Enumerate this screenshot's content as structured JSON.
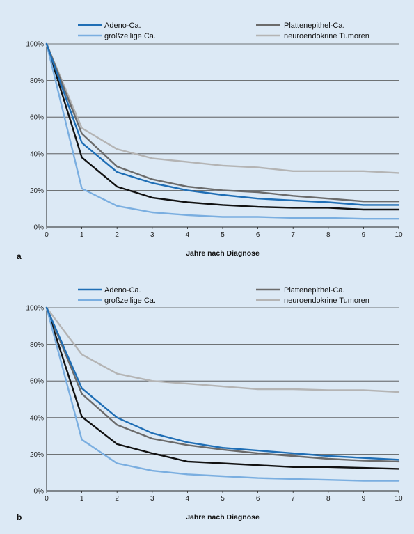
{
  "chart_data": [
    {
      "panel": "a",
      "type": "line",
      "xlabel": "Jahre nach Diagnose",
      "ylabel": "",
      "x": [
        0,
        1,
        2,
        3,
        4,
        5,
        6,
        7,
        8,
        9,
        10
      ],
      "xlim": [
        0,
        10
      ],
      "ylim": [
        0,
        100
      ],
      "ytick_labels": [
        "0%",
        "20%",
        "40%",
        "60%",
        "80%",
        "100%"
      ],
      "xtick_labels": [
        "0",
        "1",
        "2",
        "3",
        "4",
        "5",
        "6",
        "7",
        "8",
        "9",
        "10"
      ],
      "grid": true,
      "legend_position": "top",
      "series": [
        {
          "name": "Adeno-Ca.",
          "color": "#1f6eb5",
          "values": [
            100,
            46,
            30,
            24,
            20,
            17.5,
            15.5,
            14.5,
            13.5,
            12,
            12
          ]
        },
        {
          "name": "großzellige Ca.",
          "color": "#7aaee0",
          "values": [
            100,
            21,
            11.5,
            8,
            6.5,
            5.5,
            5.5,
            5,
            5,
            4.5,
            4.5
          ]
        },
        {
          "name": "Plattenepithel-Ca.",
          "color": "#6b6b6b",
          "values": [
            100,
            51,
            33,
            26,
            22,
            20,
            19,
            17,
            15.5,
            14,
            14
          ]
        },
        {
          "name": "neuroendokrine Tumoren",
          "color": "#b4b4b4",
          "values": [
            100,
            54,
            42.5,
            37.5,
            35.5,
            33.5,
            32.5,
            30.5,
            30.5,
            30.5,
            29.5
          ]
        },
        {
          "name": "",
          "color": "#111111",
          "values": [
            100,
            38,
            22,
            16,
            13.5,
            12,
            11,
            10.5,
            10.5,
            9.5,
            9.5
          ]
        }
      ]
    },
    {
      "panel": "b",
      "type": "line",
      "xlabel": "Jahre nach Diagnose",
      "ylabel": "",
      "x": [
        0,
        1,
        2,
        3,
        4,
        5,
        6,
        7,
        8,
        9,
        10
      ],
      "xlim": [
        0,
        10
      ],
      "ylim": [
        0,
        100
      ],
      "ytick_labels": [
        "0%",
        "20%",
        "40%",
        "60%",
        "80%",
        "100%"
      ],
      "xtick_labels": [
        "0",
        "1",
        "2",
        "3",
        "4",
        "5",
        "6",
        "7",
        "8",
        "9",
        "10"
      ],
      "grid": true,
      "legend_position": "top",
      "series": [
        {
          "name": "Adeno-Ca.",
          "color": "#1f6eb5",
          "values": [
            100,
            56,
            40,
            31.5,
            26.5,
            23.5,
            22,
            20.5,
            19,
            18,
            17
          ]
        },
        {
          "name": "großzellige Ca.",
          "color": "#7aaee0",
          "values": [
            100,
            28,
            15,
            11,
            9,
            8,
            7,
            6.5,
            6,
            5.5,
            5.5
          ]
        },
        {
          "name": "Plattenepithel-Ca.",
          "color": "#6b6b6b",
          "values": [
            100,
            53,
            36,
            28.5,
            25,
            22.5,
            20.5,
            19,
            17.5,
            16.5,
            16
          ]
        },
        {
          "name": "neuroendokrine Tumoren",
          "color": "#b4b4b4",
          "values": [
            100,
            74.5,
            64,
            60,
            58.5,
            57,
            55.5,
            55.5,
            55,
            55,
            54
          ]
        },
        {
          "name": "",
          "color": "#111111",
          "values": [
            100,
            40.5,
            25.5,
            20.5,
            16,
            15,
            14,
            13,
            13,
            12.5,
            12
          ]
        }
      ]
    }
  ]
}
